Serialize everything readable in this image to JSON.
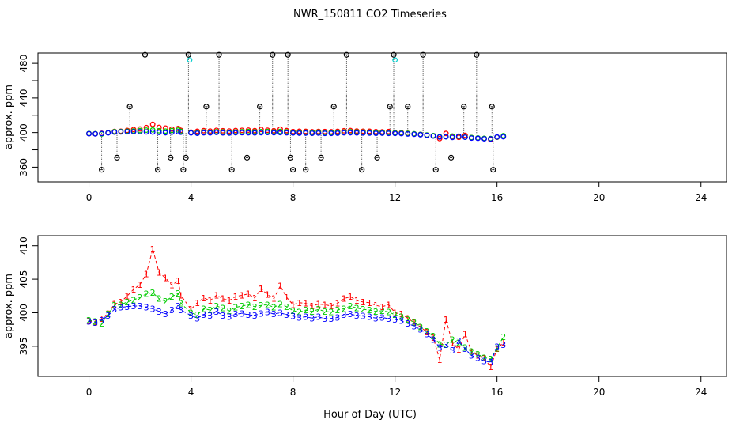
{
  "chart_data": {
    "type": "scatter",
    "title": "NWR_150811  CO2 Timeseries",
    "xlabel": "Hour of Day (UTC)",
    "xlim": [
      -2,
      25
    ],
    "xticks": [
      0,
      4,
      8,
      12,
      16,
      20,
      24
    ],
    "xtick_labels": [
      "0",
      "4",
      "8",
      "12",
      "16",
      "20",
      "24"
    ],
    "panels": [
      {
        "id": "top",
        "ylabel": "approx. ppm",
        "ylim": [
          343,
          492
        ],
        "yticks": [
          360,
          380,
          400,
          420,
          440,
          460,
          480
        ],
        "ytick_labels": [
          "360",
          "",
          "400",
          "",
          "440",
          "",
          "480"
        ],
        "ytick_labels_shown": [
          "360",
          "400",
          "440",
          "480"
        ],
        "flag_levels_ppm": [
          357,
          371,
          430,
          490
        ],
        "flag_times": [
          0.5,
          1.1,
          1.6,
          2.2,
          2.7,
          3.2,
          3.7,
          3.8,
          3.9,
          4.6,
          5.1,
          5.6,
          6.2,
          6.7,
          7.2,
          7.8,
          7.9,
          8.0,
          8.5,
          9.1,
          9.6,
          10.1,
          10.7,
          11.3,
          11.8,
          11.95,
          12.5,
          13.1,
          13.6,
          14.2,
          14.7,
          15.2,
          15.8,
          15.85
        ],
        "flag_levels": [
          357,
          371,
          430,
          490,
          357,
          371,
          357,
          371,
          490,
          430,
          490,
          357,
          371,
          430,
          490,
          490,
          371,
          357,
          357,
          371,
          430,
          490,
          357,
          371,
          430,
          490,
          430,
          490,
          357,
          371,
          430,
          490,
          430,
          357
        ],
        "cyan_points": [
          [
            3.95,
            484
          ],
          [
            12.0,
            484
          ]
        ],
        "series": [
          {
            "name": "1",
            "color": "#ff0000",
            "marker": "circle"
          },
          {
            "name": "2",
            "color": "#00cc00",
            "marker": "circle"
          },
          {
            "name": "3",
            "color": "#0000ff",
            "marker": "circle"
          }
        ]
      },
      {
        "id": "bottom",
        "ylabel": "approx. ppm",
        "ylim": [
          390.5,
          411.5
        ],
        "yticks": [
          395,
          400,
          405,
          410
        ],
        "ytick_labels": [
          "395",
          "400",
          "405",
          "410"
        ],
        "series": [
          {
            "name": "1",
            "color": "#ff0000",
            "marker": "1"
          },
          {
            "name": "2",
            "color": "#00cc00",
            "marker": "2"
          },
          {
            "name": "3",
            "color": "#0000ff",
            "marker": "3"
          }
        ]
      }
    ],
    "x": [
      0.0,
      0.25,
      0.5,
      0.75,
      1.0,
      1.25,
      1.5,
      1.75,
      2.0,
      2.25,
      2.5,
      2.75,
      3.0,
      3.25,
      3.5,
      3.6,
      4.0,
      4.25,
      4.5,
      4.75,
      5.0,
      5.25,
      5.5,
      5.75,
      6.0,
      6.25,
      6.5,
      6.75,
      7.0,
      7.25,
      7.5,
      7.75,
      8.0,
      8.25,
      8.5,
      8.75,
      9.0,
      9.25,
      9.5,
      9.75,
      10.0,
      10.25,
      10.5,
      10.75,
      11.0,
      11.25,
      11.5,
      11.75,
      12.0,
      12.25,
      12.5,
      12.75,
      13.0,
      13.25,
      13.5,
      13.75,
      14.0,
      14.25,
      14.5,
      14.75,
      15.0,
      15.25,
      15.5,
      15.75,
      16.0,
      16.25
    ],
    "values_1": [
      398.8,
      398.6,
      399.1,
      399.9,
      401.3,
      401.6,
      402.5,
      403.5,
      404.2,
      405.8,
      409.5,
      406.0,
      405.2,
      404.1,
      404.8,
      402.6,
      400.5,
      401.5,
      402.2,
      401.8,
      402.6,
      402.1,
      401.8,
      402.4,
      402.6,
      402.8,
      402.2,
      403.6,
      402.7,
      402.1,
      404.0,
      402.3,
      401.2,
      401.5,
      401.4,
      401.0,
      401.3,
      401.2,
      401.0,
      401.4,
      402.1,
      402.4,
      401.8,
      401.6,
      401.5,
      401.1,
      400.9,
      401.2,
      400.0,
      399.8,
      399.2,
      398.5,
      397.9,
      397.1,
      396.3,
      393.0,
      399.0,
      395.5,
      394.5,
      396.8,
      394.2,
      393.6,
      393.2,
      391.9,
      394.6,
      395.6
    ],
    "values_2": [
      398.9,
      398.7,
      398.4,
      399.8,
      401.1,
      401.2,
      401.6,
      401.9,
      402.3,
      402.8,
      403.0,
      402.1,
      401.7,
      402.4,
      402.9,
      401.4,
      400.0,
      399.7,
      400.6,
      400.4,
      401.0,
      400.7,
      400.3,
      400.8,
      401.0,
      401.2,
      400.9,
      401.1,
      401.2,
      400.8,
      401.3,
      400.9,
      400.3,
      400.1,
      400.4,
      400.2,
      400.5,
      400.2,
      400.1,
      400.4,
      400.6,
      401.0,
      400.7,
      400.5,
      400.4,
      400.2,
      400.3,
      400.1,
      399.7,
      399.4,
      399.0,
      398.6,
      397.9,
      397.2,
      396.5,
      395.3,
      395.2,
      396.0,
      395.5,
      394.8,
      394.2,
      393.8,
      393.3,
      393.1,
      394.7,
      396.4
    ],
    "values_3": [
      398.7,
      398.5,
      398.9,
      399.6,
      400.5,
      400.8,
      400.9,
      401.0,
      401.0,
      400.8,
      400.6,
      400.2,
      399.8,
      400.4,
      401.0,
      400.4,
      399.6,
      399.2,
      399.7,
      399.6,
      400.2,
      399.6,
      399.4,
      399.8,
      399.9,
      399.7,
      399.6,
      399.9,
      400.1,
      399.8,
      400.0,
      399.7,
      399.5,
      399.3,
      399.4,
      399.2,
      399.4,
      399.1,
      399.1,
      399.3,
      399.7,
      399.8,
      399.6,
      399.5,
      399.4,
      399.2,
      399.3,
      399.1,
      399.0,
      398.8,
      398.4,
      398.0,
      397.5,
      396.8,
      396.0,
      394.8,
      395.2,
      394.4,
      395.8,
      394.6,
      393.6,
      393.3,
      392.8,
      392.6,
      394.9,
      395.2
    ]
  }
}
